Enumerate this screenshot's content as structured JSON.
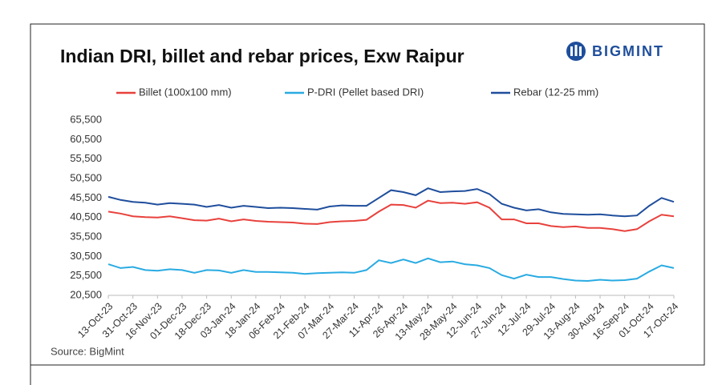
{
  "chart_data": {
    "type": "line",
    "title": "Indian DRI, billet and rebar prices, Exw Raipur",
    "logo": "BIGMINT",
    "source": "Source: BigMint",
    "categories": [
      "13-Oct-23",
      null,
      "31-Oct-23",
      null,
      "16-Nov-23",
      null,
      "01-Dec-23",
      null,
      "18-Dec-23",
      null,
      "03-Jan-24",
      null,
      "18-Jan-24",
      null,
      "06-Feb-24",
      null,
      "21-Feb-24",
      null,
      "07-Mar-24",
      null,
      "27-Mar-24",
      null,
      "11-Apr-24",
      null,
      "26-Apr-24",
      null,
      "13-May-24",
      null,
      "28-May-24",
      null,
      "12-Jun-24",
      null,
      "27-Jun-24",
      null,
      "12-Jul-24",
      null,
      "29-Jul-24",
      null,
      "13-Aug-24",
      null,
      "30-Aug-24",
      null,
      "16-Sep-24",
      null,
      "01-Oct-24",
      null,
      "17-Oct-24"
    ],
    "series": [
      {
        "name": "Billet (100x100 mm)",
        "color": "#e8413c",
        "values": [
          42000,
          41500,
          40800,
          40600,
          40500,
          40800,
          40300,
          39800,
          39700,
          40200,
          39500,
          40000,
          39600,
          39400,
          39300,
          39200,
          38900,
          38800,
          39300,
          39500,
          39600,
          39900,
          42000,
          43800,
          43700,
          43000,
          44800,
          44200,
          44300,
          44000,
          44400,
          43000,
          40000,
          40000,
          39000,
          39000,
          38300,
          38000,
          38200,
          37800,
          37800,
          37500,
          37000,
          37500,
          39500,
          41200,
          40800
        ]
      },
      {
        "name": "P-DRI (Pellet based DRI)",
        "color": "#29abe2",
        "values": [
          28500,
          27500,
          27800,
          27000,
          26800,
          27200,
          27000,
          26300,
          27000,
          26900,
          26300,
          27000,
          26500,
          26500,
          26400,
          26300,
          26000,
          26200,
          26300,
          26400,
          26300,
          27000,
          29500,
          28800,
          29700,
          28800,
          30000,
          29000,
          29200,
          28500,
          28200,
          27500,
          25700,
          24800,
          25800,
          25200,
          25200,
          24700,
          24300,
          24200,
          24500,
          24300,
          24400,
          24800,
          26600,
          28200,
          27500
        ]
      },
      {
        "name": "Rebar (12-25 mm)",
        "color": "#1f4e9c",
        "values": [
          45800,
          45000,
          44500,
          44300,
          43800,
          44200,
          44000,
          43800,
          43200,
          43700,
          43000,
          43500,
          43200,
          42900,
          43000,
          42900,
          42700,
          42500,
          43300,
          43600,
          43500,
          43500,
          45500,
          47500,
          47000,
          46200,
          48000,
          47000,
          47200,
          47300,
          47800,
          46500,
          44000,
          43000,
          42300,
          42600,
          41800,
          41400,
          41300,
          41200,
          41300,
          41000,
          40800,
          41000,
          43500,
          45500,
          44500
        ]
      }
    ],
    "ylim": [
      20500,
      65500
    ],
    "yticks": [
      {
        "value": 20500,
        "label": "20,500"
      },
      {
        "value": 25500,
        "label": "25,500"
      },
      {
        "value": 30500,
        "label": "30,500"
      },
      {
        "value": 35500,
        "label": "35,500"
      },
      {
        "value": 40500,
        "label": "40,500"
      },
      {
        "value": 45500,
        "label": "45,500"
      },
      {
        "value": 50500,
        "label": "50,500"
      },
      {
        "value": 55500,
        "label": "55,500"
      },
      {
        "value": 60500,
        "label": "60,500"
      },
      {
        "value": 65500,
        "label": "65,500"
      }
    ],
    "grid": false,
    "legend": "top"
  }
}
